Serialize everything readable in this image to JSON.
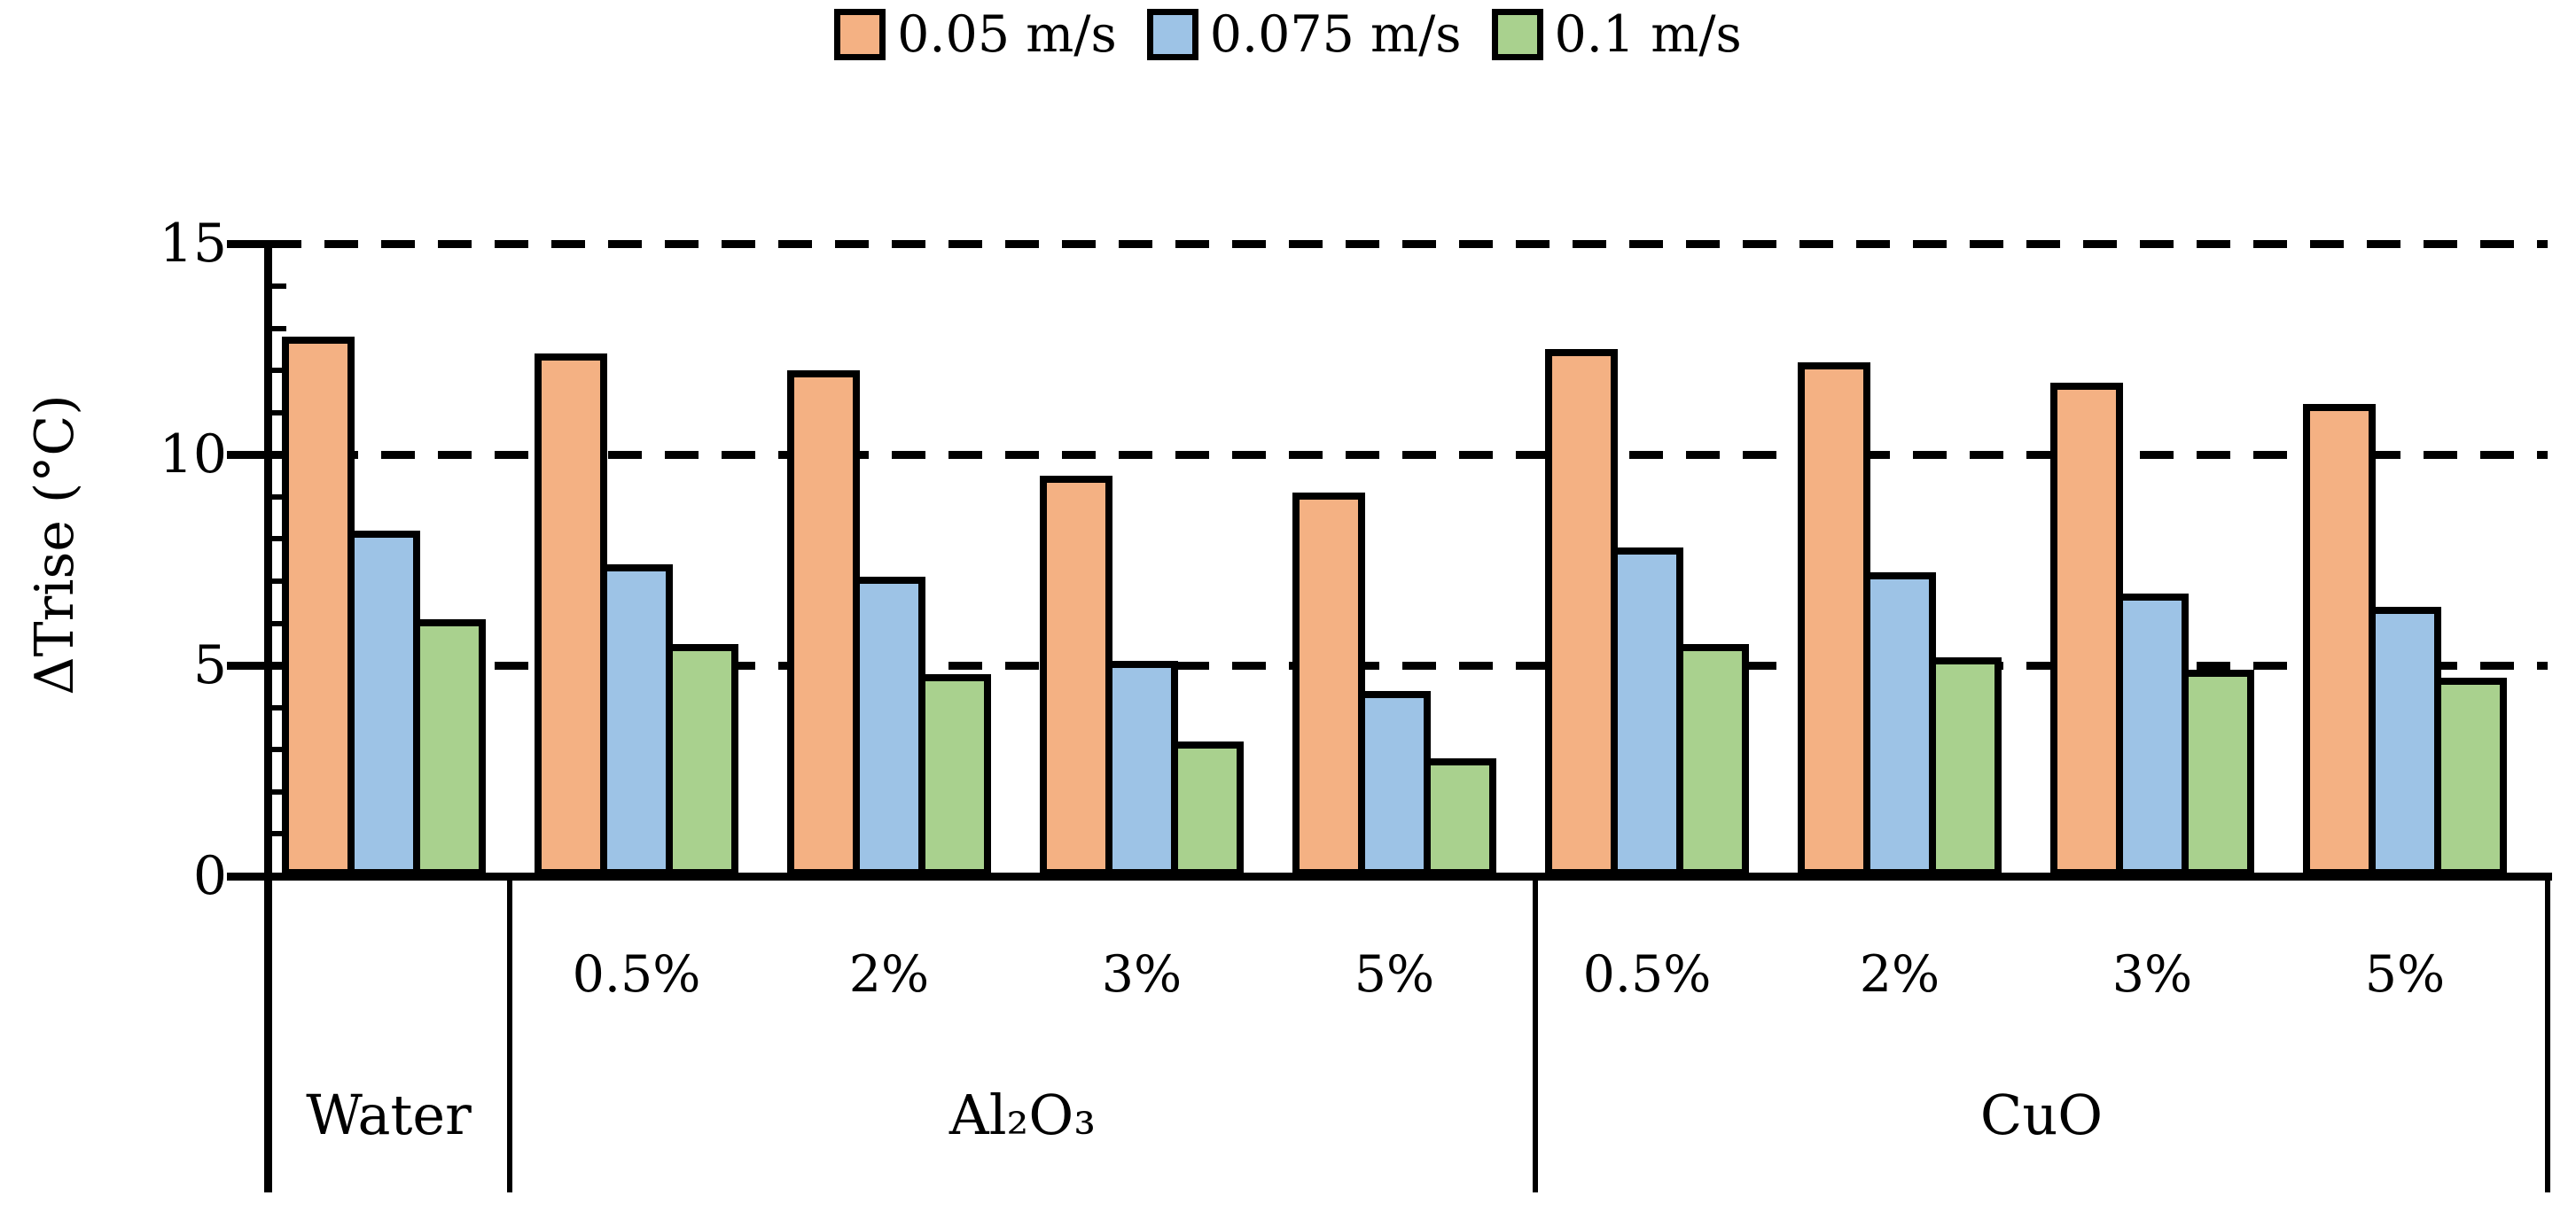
{
  "chart_data": {
    "type": "bar",
    "title": "",
    "ylabel": "ΔTrise (°C)",
    "ylim": [
      0,
      15
    ],
    "yticks": [
      0,
      5,
      10,
      15
    ],
    "minor_tick_step": 1,
    "grid": "horizontal dashed lines at y = 5, 10, 15",
    "legend_position": "top-center",
    "legend": [
      {
        "label": "0.05 m/s",
        "color": "#F4B183"
      },
      {
        "label": "0.075 m/s",
        "color": "#9DC3E6"
      },
      {
        "label": "0.1 m/s",
        "color": "#A9D18E"
      }
    ],
    "categories": [
      "Water",
      "Al₂O₃ 0.5%",
      "Al₂O₃ 2%",
      "Al₂O₃ 3%",
      "Al₂O₃ 5%",
      "CuO 0.5%",
      "CuO 2%",
      "CuO 3%",
      "CuO 5%"
    ],
    "concentration_labels": [
      "",
      "0.5%",
      "2%",
      "3%",
      "5%",
      "0.5%",
      "2%",
      "3%",
      "5%"
    ],
    "fluid_groups": [
      {
        "label": "Water",
        "span": 1
      },
      {
        "label": "Al₂O₃",
        "span": 4
      },
      {
        "label": "CuO",
        "span": 4
      }
    ],
    "series": [
      {
        "name": "0.05 m/s",
        "color": "#F4B183",
        "values": [
          12.8,
          12.4,
          12.0,
          9.5,
          9.1,
          12.5,
          12.2,
          11.7,
          11.2
        ]
      },
      {
        "name": "0.075 m/s",
        "color": "#9DC3E6",
        "values": [
          8.2,
          7.4,
          7.1,
          5.1,
          4.4,
          7.8,
          7.2,
          6.7,
          6.4
        ]
      },
      {
        "name": "0.1 m/s",
        "color": "#A9D18E",
        "values": [
          6.1,
          5.5,
          4.8,
          3.2,
          2.8,
          5.5,
          5.2,
          4.9,
          4.7
        ]
      }
    ]
  },
  "colors": {
    "axis": "#000000",
    "background": "#FFFFFF"
  }
}
